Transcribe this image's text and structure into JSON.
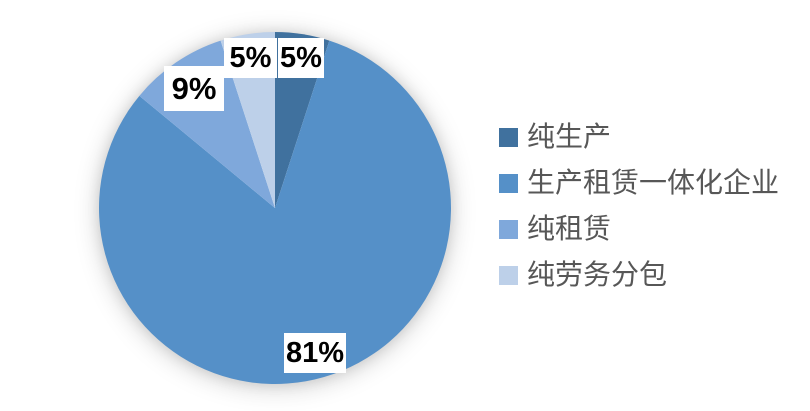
{
  "chart_data": {
    "type": "pie",
    "title": "",
    "direction": "clockwise",
    "start_angle_deg": 0,
    "legend_position": "right",
    "data_labels": "percent",
    "background_color": "#ffffff",
    "label_text_color": "#000000",
    "legend_text_color": "#575757",
    "slices": [
      {
        "label": "纯生产",
        "value": 5,
        "pct_label": "5%",
        "color": "#40719E"
      },
      {
        "label": "生产租赁一体化企业",
        "value": 81,
        "pct_label": "81%",
        "color": "#5590C8"
      },
      {
        "label": "纯租赁",
        "value": 9,
        "pct_label": "9%",
        "color": "#7FA8DB"
      },
      {
        "label": "纯劳务分包",
        "value": 5,
        "pct_label": "5%",
        "color": "#BDD0E9"
      }
    ]
  }
}
